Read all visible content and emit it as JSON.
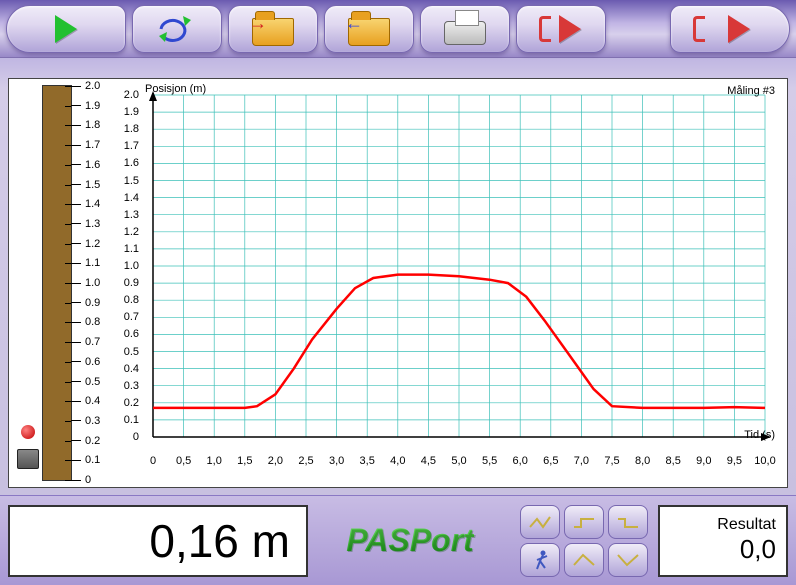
{
  "toolbar": {
    "play": "Play",
    "loop": "Loop",
    "open": "Open",
    "save": "Save",
    "print": "Print",
    "export": "Export",
    "exit": "Exit"
  },
  "ruler": {
    "max": 2.0,
    "min": 0,
    "step": 0.1,
    "labels": [
      "2.0",
      "1.9",
      "1.8",
      "1.7",
      "1.6",
      "1.5",
      "1.4",
      "1.3",
      "1.2",
      "1.1",
      "1.0",
      "0.9",
      "0.8",
      "0.7",
      "0.6",
      "0.5",
      "0.4",
      "0.3",
      "0.2",
      "0.1",
      "0"
    ],
    "fill_color": "#916a2a"
  },
  "chart": {
    "type": "line",
    "ylabel": "Posisjon (m)",
    "xlabel": "Tid (s)",
    "run_label": "Måling #3",
    "xlim": [
      0,
      10
    ],
    "ylim": [
      0,
      2
    ],
    "xtick_step": 0.5,
    "ytick_step": 0.1,
    "xticks": [
      "0",
      "0,5",
      "1,0",
      "1,5",
      "2,0",
      "2,5",
      "3,0",
      "3,5",
      "4,0",
      "4,5",
      "5,0",
      "5,5",
      "6,0",
      "6,5",
      "7,0",
      "7,5",
      "8,0",
      "8,5",
      "9,0",
      "9,5",
      "10,0"
    ],
    "grid_color": "#3cc0b8",
    "line_color": "#ff0000",
    "line_width": 2.5,
    "background_color": "#ffffff",
    "axis_color": "#000000",
    "series": [
      [
        0.0,
        0.17
      ],
      [
        0.5,
        0.17
      ],
      [
        1.0,
        0.17
      ],
      [
        1.5,
        0.17
      ],
      [
        1.7,
        0.18
      ],
      [
        2.0,
        0.25
      ],
      [
        2.3,
        0.4
      ],
      [
        2.6,
        0.57
      ],
      [
        3.0,
        0.75
      ],
      [
        3.3,
        0.87
      ],
      [
        3.6,
        0.93
      ],
      [
        4.0,
        0.95
      ],
      [
        4.5,
        0.95
      ],
      [
        5.0,
        0.94
      ],
      [
        5.5,
        0.92
      ],
      [
        5.8,
        0.9
      ],
      [
        6.1,
        0.82
      ],
      [
        6.4,
        0.68
      ],
      [
        6.8,
        0.48
      ],
      [
        7.2,
        0.28
      ],
      [
        7.5,
        0.18
      ],
      [
        8.0,
        0.17
      ],
      [
        8.5,
        0.17
      ],
      [
        9.0,
        0.17
      ],
      [
        9.5,
        0.175
      ],
      [
        10.0,
        0.17
      ]
    ]
  },
  "readout": {
    "value": "0,16 m"
  },
  "result": {
    "label": "Resultat",
    "value": "0,0"
  },
  "brand": "PASPort",
  "mini_labels": [
    "graph1",
    "graph2",
    "graph3",
    "walker",
    "graph4",
    "graph5"
  ]
}
